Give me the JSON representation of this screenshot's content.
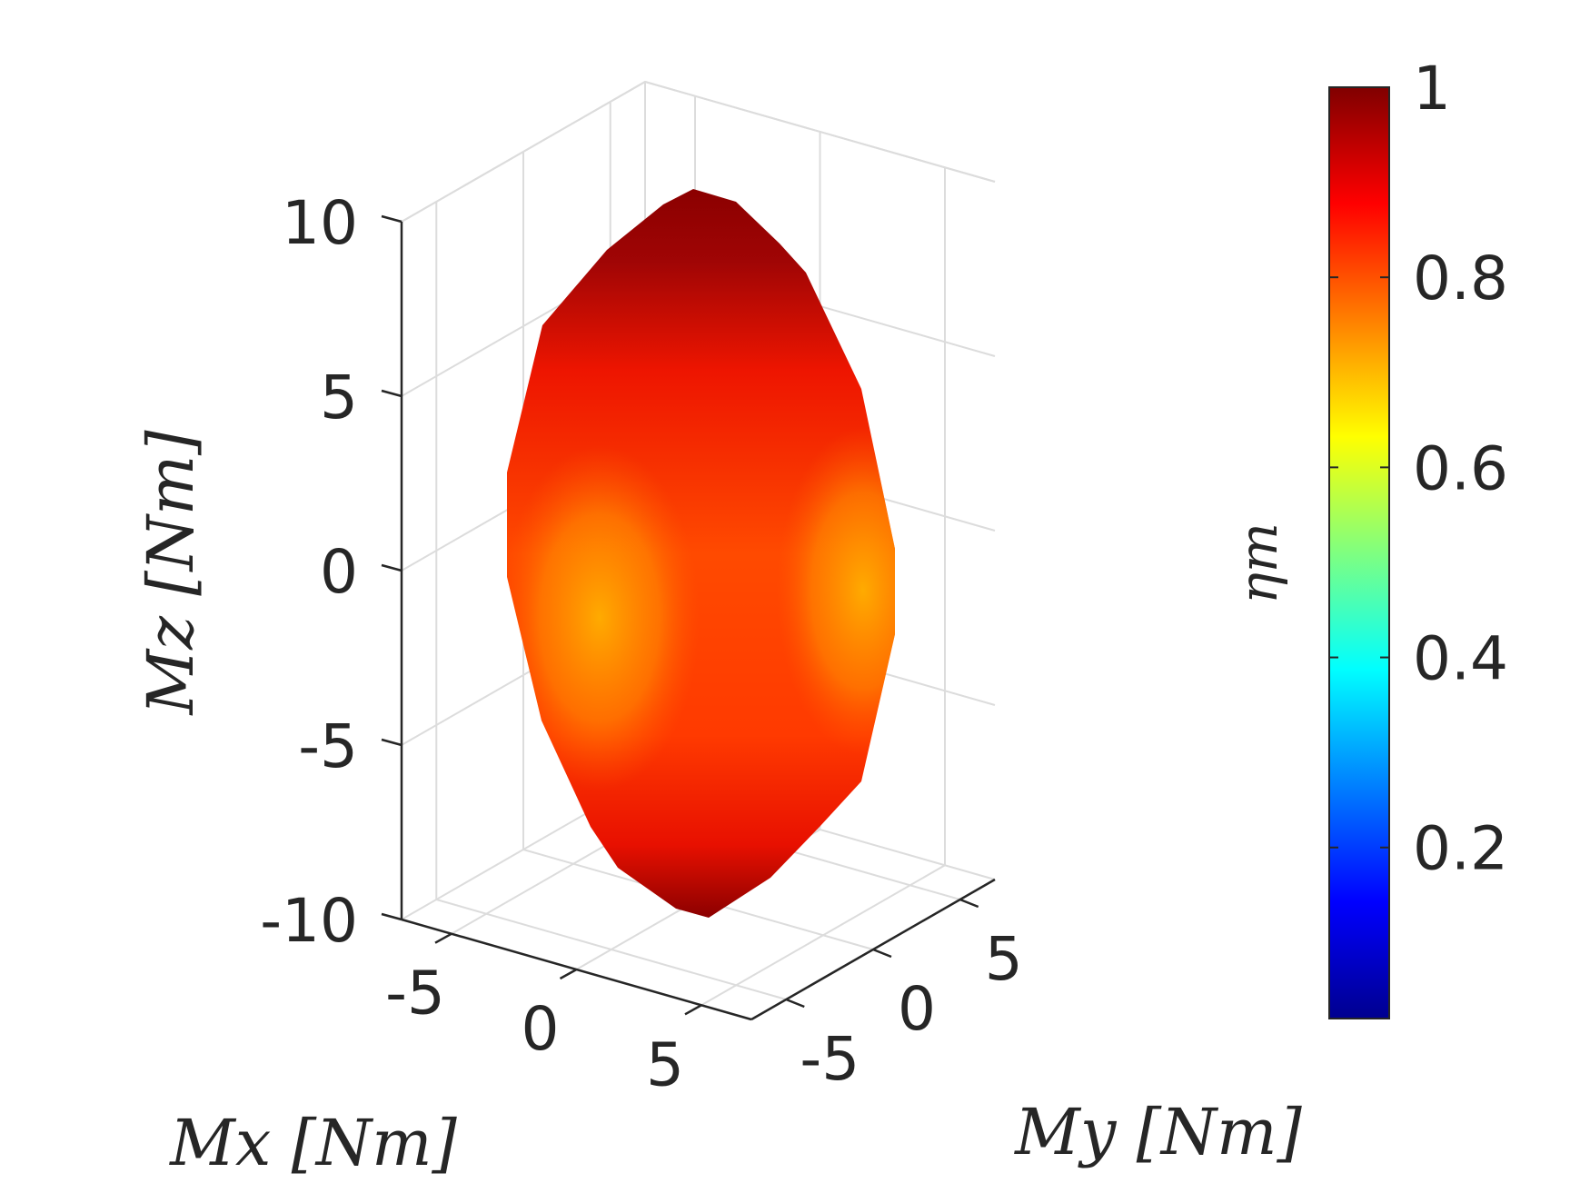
{
  "chart_data": {
    "type": "surface3d",
    "title": "",
    "shape": "closed ellipsoid-like polyhedral surface",
    "axes": {
      "x": {
        "label": "Mx [Nm]",
        "ticks": [
          -5,
          0,
          5
        ],
        "tick_labels": [
          "-5",
          "0",
          "5"
        ],
        "range": [
          -7,
          7
        ]
      },
      "y": {
        "label": "My [Nm]",
        "ticks": [
          -5,
          0,
          5
        ],
        "tick_labels": [
          "-5",
          "0",
          "5"
        ],
        "range": [
          -7,
          7
        ]
      },
      "z": {
        "label": "Mz [Nm]",
        "ticks": [
          -10,
          -5,
          0,
          5,
          10
        ],
        "tick_labels": [
          "-10",
          "-5",
          "0",
          "5",
          "10"
        ],
        "range": [
          -10,
          10
        ]
      }
    },
    "grid": true,
    "surface_extent": {
      "z": [
        -10,
        10
      ],
      "x": [
        -6,
        6
      ],
      "y": [
        -6,
        6
      ]
    },
    "color_samples": [
      {
        "region": "top cap",
        "value": 1.0
      },
      {
        "region": "upper body",
        "value": 0.9
      },
      {
        "region": "middle body",
        "value": 0.85
      },
      {
        "region": "left/right equator",
        "value": 0.75
      },
      {
        "region": "lower body",
        "value": 0.88
      },
      {
        "region": "bottom cap",
        "value": 1.0
      }
    ],
    "colorbar": {
      "label": "ηm",
      "colormap": "jet",
      "range": [
        0.02,
        1.0
      ],
      "ticks": [
        0.2,
        0.4,
        0.6,
        0.8,
        1
      ],
      "tick_labels": [
        "0.2",
        "0.4",
        "0.6",
        "0.8",
        "1"
      ]
    }
  }
}
